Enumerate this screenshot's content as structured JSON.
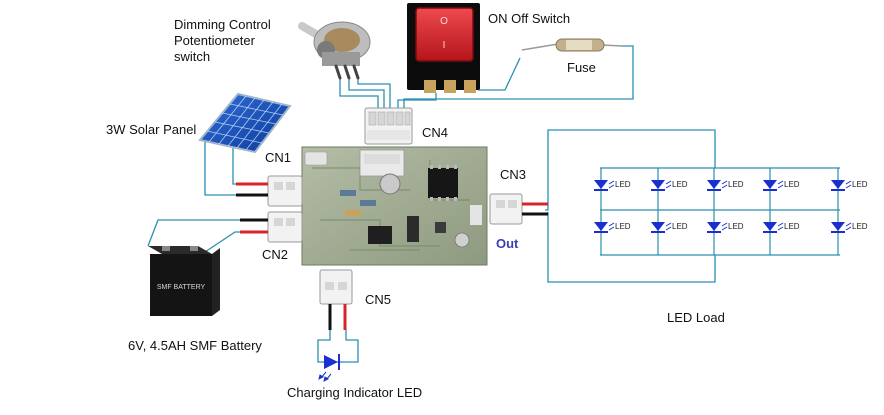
{
  "labels": {
    "dimming_line1": "Dimming Control",
    "dimming_line2": "Potentiometer",
    "dimming_line3": "switch",
    "onoff_switch": "ON Off Switch",
    "fuse": "Fuse",
    "solar_panel": "3W Solar Panel",
    "cn1": "CN1",
    "cn2": "CN2",
    "cn3": "CN3",
    "cn4": "CN4",
    "cn5": "CN5",
    "out": "Out",
    "battery": "6V, 4.5AH SMF Battery",
    "led_load": "LED Load",
    "charging_led": "Charging Indicator LED"
  },
  "component_text": {
    "battery_face": "SMF BATTERY",
    "led_tag": "LED",
    "switch_on_mark": "I",
    "switch_off_mark": "O"
  },
  "led_matrix": {
    "columns": 5,
    "rows": 2
  },
  "colors": {
    "wire": "#2a8fb0",
    "led_blue": "#1a2fd0",
    "pcb_green": "#9aa68c",
    "switch_red": "#d8232a",
    "out_text": "#3a3fb5"
  }
}
